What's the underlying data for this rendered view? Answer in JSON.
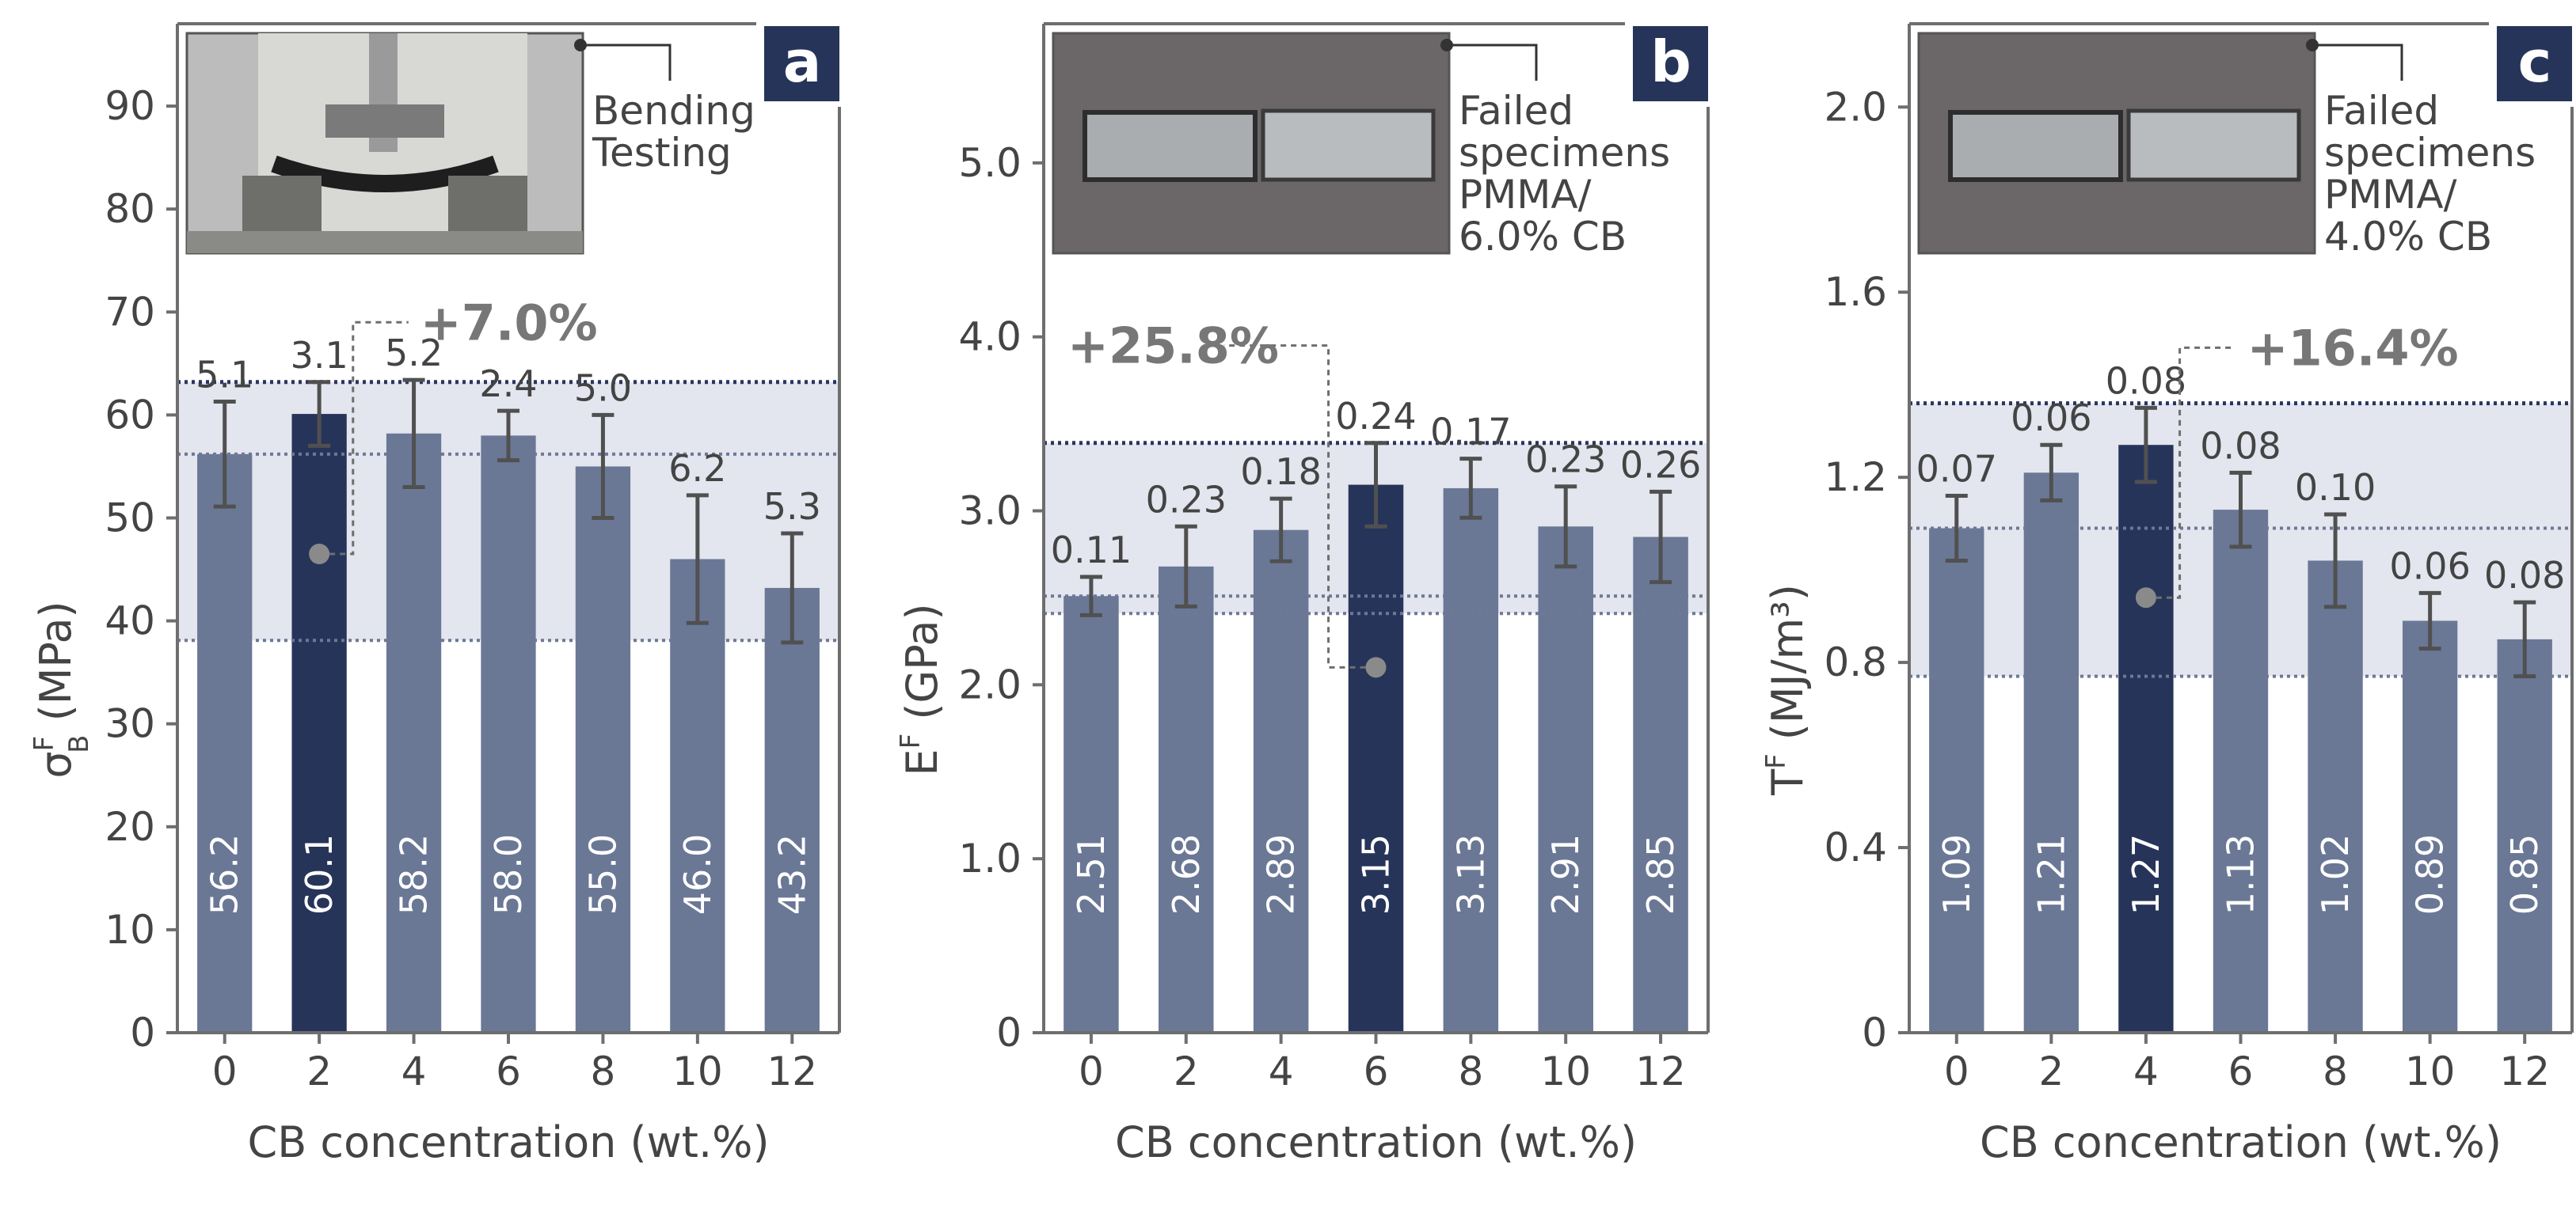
{
  "colors": {
    "bar": "#6a7896",
    "bar_highlight": "#27345a",
    "band": "#e3e6ee",
    "text": "#444444",
    "pct": "#777777",
    "frame": "#6e6e6e",
    "tag_bg": "#27345a"
  },
  "chart_data": [
    {
      "type": "bar",
      "panel_tag": "a",
      "categories": [
        "0",
        "2",
        "4",
        "6",
        "8",
        "10",
        "12"
      ],
      "values": [
        56.2,
        60.1,
        58.2,
        58.0,
        55.0,
        46.0,
        43.2
      ],
      "bar_labels": [
        "56.2",
        "60.1",
        "58.2",
        "58.0",
        "55.0",
        "46.0",
        "43.2"
      ],
      "errors": [
        5.1,
        3.1,
        5.2,
        2.4,
        5.0,
        6.2,
        5.3
      ],
      "error_labels": [
        "5.1",
        "3.1",
        "5.2",
        "2.4",
        "5.0",
        "6.2",
        "5.3"
      ],
      "highlight_index": 1,
      "ylim": [
        0,
        98
      ],
      "yticks": [
        0,
        10,
        20,
        30,
        40,
        50,
        60,
        70,
        80,
        90
      ],
      "ytick_labels": [
        "0",
        "10",
        "20",
        "30",
        "40",
        "50",
        "60",
        "70",
        "80",
        "90"
      ],
      "ylabel": {
        "main": "σ",
        "sup": "F",
        "sub": "B",
        "unit": " (MPa)"
      },
      "xlabel": "CB concentration (wt.%)",
      "band": [
        38.1,
        63.2
      ],
      "band_dotted_lines": [
        38.1,
        56.2,
        63.2
      ],
      "band_dark_line": 63.2,
      "increase": {
        "text": "+7.0%",
        "marker_y": 46.5,
        "text_y": 69
      },
      "photo_caption": [
        "Bending",
        "Testing"
      ]
    },
    {
      "type": "bar",
      "panel_tag": "b",
      "categories": [
        "0",
        "2",
        "4",
        "6",
        "8",
        "10",
        "12"
      ],
      "values": [
        2.51,
        2.68,
        2.89,
        3.15,
        3.13,
        2.91,
        2.85
      ],
      "bar_labels": [
        "2.51",
        "2.68",
        "2.89",
        "3.15",
        "3.13",
        "2.91",
        "2.85"
      ],
      "errors": [
        0.11,
        0.23,
        0.18,
        0.24,
        0.17,
        0.23,
        0.26
      ],
      "error_labels": [
        "0.11",
        "0.23",
        "0.18",
        "0.24",
        "0.17",
        "0.23",
        "0.26"
      ],
      "highlight_index": 3,
      "ylim": [
        0,
        5.8
      ],
      "yticks": [
        0,
        1,
        2,
        3,
        4,
        5
      ],
      "ytick_labels": [
        "0",
        "1.0",
        "2.0",
        "3.0",
        "4.0",
        "5.0"
      ],
      "ylabel": {
        "main": "E",
        "sup": "F",
        "sub": "",
        "unit": " (GPa)"
      },
      "xlabel": "CB concentration (wt.%)",
      "band": [
        2.41,
        3.39
      ],
      "band_dotted_lines": [
        2.41,
        2.51,
        3.39
      ],
      "band_dark_line": 3.39,
      "increase": {
        "text": "+25.8%",
        "marker_y": 2.1,
        "text_y": 3.95
      },
      "photo_caption": [
        "Failed",
        "specimens",
        "PMMA/",
        "6.0% CB"
      ]
    },
    {
      "type": "bar",
      "panel_tag": "c",
      "categories": [
        "0",
        "2",
        "4",
        "6",
        "8",
        "10",
        "12"
      ],
      "values": [
        1.09,
        1.21,
        1.27,
        1.13,
        1.02,
        0.89,
        0.85
      ],
      "bar_labels": [
        "1.09",
        "1.21",
        "1.27",
        "1.13",
        "1.02",
        "0.89",
        "0.85"
      ],
      "errors": [
        0.07,
        0.06,
        0.08,
        0.08,
        0.1,
        0.06,
        0.08
      ],
      "error_labels": [
        "0.07",
        "0.06",
        "0.08",
        "0.08",
        "0.10",
        "0.06",
        "0.08"
      ],
      "highlight_index": 2,
      "ylim": [
        0,
        2.18
      ],
      "yticks": [
        0,
        0.4,
        0.8,
        1.2,
        1.6,
        2.0
      ],
      "ytick_labels": [
        "0",
        "0.4",
        "0.8",
        "1.2",
        "1.6",
        "2.0"
      ],
      "ylabel": {
        "main": "T",
        "sup": "F",
        "sub": "",
        "unit": " (MJ/m³)"
      },
      "xlabel": "CB concentration (wt.%)",
      "band": [
        0.77,
        1.36
      ],
      "band_dotted_lines": [
        0.77,
        1.09,
        1.36
      ],
      "band_dark_line": 1.36,
      "increase": {
        "text": "+16.4%",
        "marker_y": 0.94,
        "text_y": 1.48
      },
      "photo_caption": [
        "Failed",
        "specimens",
        "PMMA/",
        "4.0% CB"
      ]
    }
  ]
}
